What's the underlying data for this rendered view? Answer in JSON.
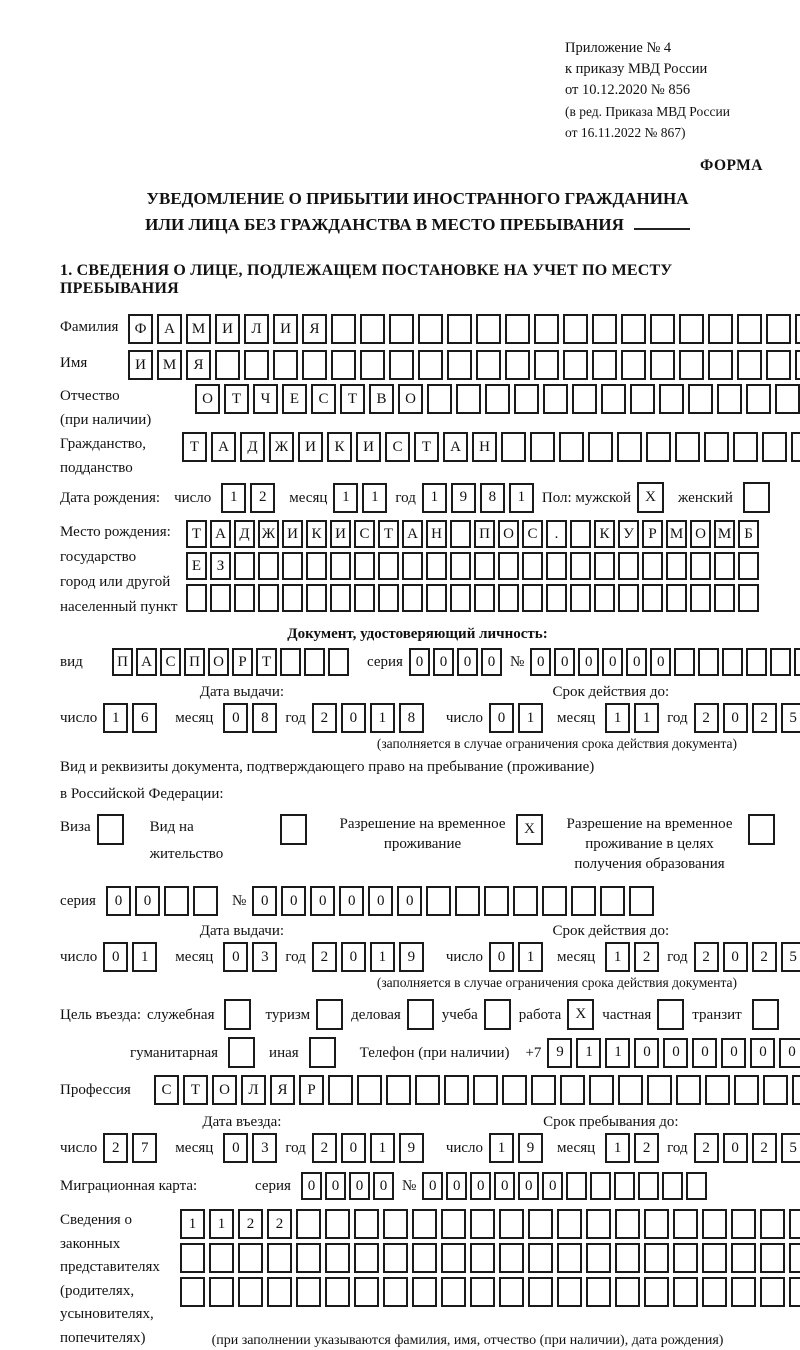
{
  "header": {
    "line1": "Приложение № 4",
    "line2": "к приказу МВД России",
    "line3": "от 10.12.2020 № 856",
    "line4": "(в ред. Приказа МВД России",
    "line5": "от 16.11.2022 № 867)",
    "forma": "ФОРМА"
  },
  "title": {
    "line1": "УВЕДОМЛЕНИЕ О ПРИБЫТИИ ИНОСТРАННОГО ГРАЖДАНИНА",
    "line2": "ИЛИ ЛИЦА БЕЗ ГРАЖДАНСТВА В МЕСТО ПРЕБЫВАНИЯ"
  },
  "section1_heading": "1. СВЕДЕНИЯ О ЛИЦЕ, ПОДЛЕЖАЩЕМ ПОСТАНОВКЕ НА УЧЕТ ПО МЕСТУ ПРЕБЫВАНИЯ",
  "date_labels": {
    "day": "число",
    "month": "месяц",
    "year": "год"
  },
  "validity_note": "(заполняется в случае ограничения срока действия документа)",
  "fields": {
    "surname": {
      "label": "Фамилия",
      "value": "ФАМИЛИЯ",
      "cells": 25
    },
    "name": {
      "label": "Имя",
      "value": "ИМЯ",
      "cells": 25
    },
    "patronymic": {
      "label": "Отчество",
      "sublabel": "(при наличии)",
      "value": "ОТЧЕСТВО",
      "cells": 22
    },
    "citizenship": {
      "label": "Гражданство,",
      "sublabel": "подданство",
      "value": "ТАДЖИКИСТАН",
      "cells": 23
    },
    "birth_date": {
      "label": "Дата рождения:",
      "day": {
        "value": "12",
        "cells": 2
      },
      "month": {
        "value": "11",
        "cells": 2
      },
      "year": {
        "value": "1981",
        "cells": 4
      },
      "sex_label": "Пол: мужской",
      "male_box": {
        "value": "X",
        "cells": 1
      },
      "female_label": "женский",
      "female_box": {
        "value": "",
        "cells": 1
      }
    },
    "birth_place": {
      "label1": "Место рождения:",
      "label2": "государство",
      "label3": "город или другой",
      "label4": "населенный пункт",
      "row1": {
        "value": "ТАДЖИКИСТАН ПОС. КУРМОМБ",
        "cells": 24
      },
      "row2": {
        "value": "ЕЗ",
        "cells": 24
      },
      "row3": {
        "value": "",
        "cells": 24
      }
    }
  },
  "identity_doc": {
    "section_title": "Документ, удостоверяющий личность:",
    "vid_label": "вид",
    "vid": {
      "value": "ПАСПОРТ",
      "cells": 10
    },
    "seria_label": "серия",
    "seria": {
      "value": "0000",
      "cells": 4
    },
    "num_label": "№",
    "num": {
      "value": "000000",
      "cells": 12
    },
    "issue": {
      "heading": "Дата выдачи:",
      "day": {
        "value": "16",
        "cells": 2
      },
      "month": {
        "value": "08",
        "cells": 2
      },
      "year": {
        "value": "2018",
        "cells": 4
      }
    },
    "expiry": {
      "heading": "Срок действия до:",
      "day": {
        "value": "01",
        "cells": 2
      },
      "month": {
        "value": "11",
        "cells": 2
      },
      "year": {
        "value": "2025",
        "cells": 4
      }
    }
  },
  "residence_doc": {
    "line1": "Вид и реквизиты документа, подтверждающего право на пребывание (проживание)",
    "line2": "в Российской Федерации:",
    "visa_label": "Виза",
    "visa_box": {
      "value": "",
      "cells": 1
    },
    "vnj_label": "Вид на жительство",
    "vnj_box": {
      "value": "",
      "cells": 1
    },
    "rvp_label": "Разрешение на временное проживание",
    "rvp_box": {
      "value": "X",
      "cells": 1
    },
    "rvpo_label": "Разрешение на временное проживание в целях получения образования",
    "rvpo_box": {
      "value": "",
      "cells": 1
    },
    "seria_label": "серия",
    "seria": {
      "value": "00",
      "cells": 4
    },
    "num_label": "№",
    "num": {
      "value": "000000",
      "cells": 14
    },
    "issue": {
      "heading": "Дата выдачи:",
      "day": {
        "value": "01",
        "cells": 2
      },
      "month": {
        "value": "03",
        "cells": 2
      },
      "year": {
        "value": "2019",
        "cells": 4
      }
    },
    "expiry": {
      "heading": "Срок действия до:",
      "day": {
        "value": "01",
        "cells": 2
      },
      "month": {
        "value": "12",
        "cells": 2
      },
      "year": {
        "value": "2025",
        "cells": 4
      }
    }
  },
  "purpose": {
    "label": "Цель въезда:",
    "opts": [
      {
        "label": "служебная",
        "box": {
          "value": "",
          "cells": 1
        }
      },
      {
        "label": "туризм",
        "box": {
          "value": "",
          "cells": 1
        }
      },
      {
        "label": "деловая",
        "box": {
          "value": "",
          "cells": 1
        }
      },
      {
        "label": "учеба",
        "box": {
          "value": "",
          "cells": 1
        }
      },
      {
        "label": "работа",
        "box": {
          "value": "X",
          "cells": 1
        }
      },
      {
        "label": "частная",
        "box": {
          "value": "",
          "cells": 1
        }
      },
      {
        "label": "транзит",
        "box": {
          "value": "",
          "cells": 1
        }
      }
    ],
    "opts2": [
      {
        "label": "гуманитарная",
        "box": {
          "value": "",
          "cells": 1
        }
      },
      {
        "label": "иная",
        "box": {
          "value": "",
          "cells": 1
        }
      }
    ]
  },
  "phone": {
    "label": "Телефон (при наличии)",
    "prefix": "+7",
    "num": {
      "value": "911000000",
      "cells": 10
    }
  },
  "profession": {
    "label": "Профессия",
    "value": "СТОЛЯР",
    "cells": 24
  },
  "entry": {
    "entry_date": {
      "heading": "Дата въезда:",
      "day": {
        "value": "27",
        "cells": 2
      },
      "month": {
        "value": "03",
        "cells": 2
      },
      "year": {
        "value": "2019",
        "cells": 4
      }
    },
    "stay_until": {
      "heading": "Срок пребывания до:",
      "day": {
        "value": "19",
        "cells": 2
      },
      "month": {
        "value": "12",
        "cells": 2
      },
      "year": {
        "value": "2025",
        "cells": 4
      }
    }
  },
  "migration_card": {
    "label": "Миграционная карта:",
    "seria_label": "серия",
    "seria": {
      "value": "0000",
      "cells": 4
    },
    "num_label": "№",
    "num": {
      "value": "000000",
      "cells": 12
    }
  },
  "representatives": {
    "label_lines": [
      "Сведения о",
      "законных",
      "представителях",
      "(родителях,",
      "усыновителях,",
      "попечителях)"
    ],
    "row1": {
      "value": "1122",
      "cells": 23
    },
    "row2": {
      "value": "",
      "cells": 23
    },
    "row3": {
      "value": "",
      "cells": 23
    },
    "note": "(при заполнении указываются фамилия, имя, отчество (при наличии), дата рождения)"
  }
}
